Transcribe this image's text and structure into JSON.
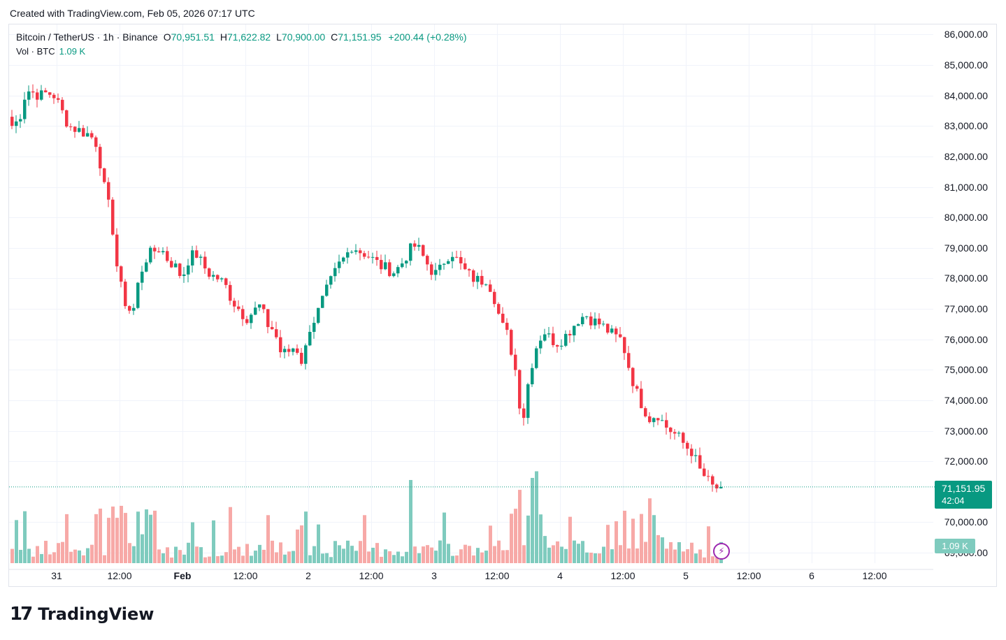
{
  "caption": "Created with TradingView.com, Feb 05, 2026 07:17 UTC",
  "legend": {
    "symbol": "Bitcoin / TetherUS · 1h · Binance",
    "o_label": "O",
    "o_value": "70,951.51",
    "h_label": "H",
    "h_value": "71,622.82",
    "l_label": "L",
    "l_value": "70,900.00",
    "c_label": "C",
    "c_value": "71,151.95",
    "change": "+200.44 (+0.28%)"
  },
  "volume_legend": {
    "label": "Vol · BTC",
    "value": "1.09 K"
  },
  "price_tag": {
    "price": "71,151.95",
    "countdown": "42:04"
  },
  "volume_tag": "1.09 K",
  "brand": "TradingView",
  "colors": {
    "up": "#089981",
    "down": "#f23645",
    "up_vol": "#7fcbbe",
    "down_vol": "#f7a9a7"
  },
  "chart_data": {
    "type": "candlestick",
    "symbol": "BTCUSDT",
    "interval": "1h",
    "last_price": 71151.95,
    "y_ticks": [
      "86,000.00",
      "85,000.00",
      "84,000.00",
      "83,000.00",
      "82,000.00",
      "81,000.00",
      "80,000.00",
      "79,000.00",
      "78,000.00",
      "77,000.00",
      "76,000.00",
      "75,000.00",
      "74,000.00",
      "73,000.00",
      "72,000.00",
      "70,000.00",
      "69,000.00"
    ],
    "x_ticks": [
      "31",
      "12:00",
      "Feb",
      "12:00",
      "2",
      "12:00",
      "3",
      "12:00",
      "4",
      "12:00",
      "5",
      "12:00",
      "6",
      "12:00"
    ],
    "ylim": [
      68800,
      86300
    ],
    "close_path": [
      83000,
      83200,
      84200,
      84100,
      84000,
      84100,
      84000,
      83500,
      83000,
      82900,
      82800,
      82700,
      82400,
      81000,
      80000,
      78000,
      77200,
      76800,
      78100,
      78700,
      78900,
      79000,
      78600,
      78400,
      78000,
      78700,
      78800,
      78400,
      78100,
      78000,
      77800,
      77300,
      77000,
      76700,
      76900,
      77100,
      76500,
      76300,
      75500,
      75600,
      75800,
      75200,
      76400,
      76800,
      77400,
      77900,
      78400,
      78700,
      79100,
      78900,
      78800,
      78600,
      78400,
      78300,
      78200,
      78500,
      78900,
      79100,
      78700,
      78300,
      78100,
      78600,
      78900,
      78500,
      78200,
      78000,
      77900,
      78000,
      77400,
      76500,
      76100,
      75000,
      73200,
      74900,
      75800,
      76300,
      76000,
      75900,
      76100,
      76400,
      76700,
      76800,
      76600,
      76500,
      76300,
      76100,
      76000,
      75100,
      74300,
      73800,
      73400,
      73600,
      73200,
      73000,
      72800,
      72500,
      72300,
      71700,
      71400,
      71100,
      71150
    ],
    "volume_note": "volume bars shown in lower pane, largest spikes near Jan 31 midday, Feb 3 late, Feb 4 late"
  }
}
